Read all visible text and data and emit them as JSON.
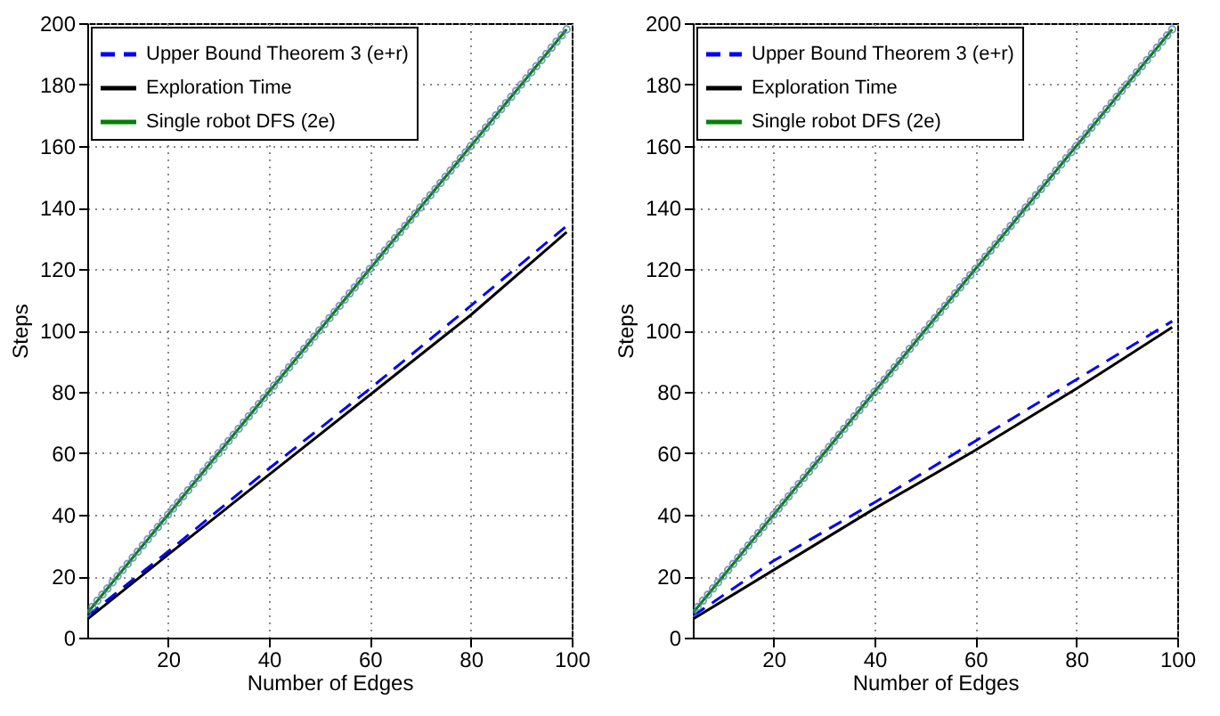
{
  "chart_data": [
    {
      "type": "line",
      "xlabel": "Number of Edges",
      "ylabel": "Steps",
      "xlim": [
        4,
        100
      ],
      "xticks": [
        20,
        40,
        60,
        80,
        100
      ],
      "ylim": [
        0,
        200
      ],
      "yticks": [
        0,
        20,
        40,
        60,
        80,
        100,
        120,
        140,
        160,
        180,
        200
      ],
      "grid": true,
      "legend": "top left",
      "series": [
        {
          "name": "Upper Bound Theorem 3 (e+r)",
          "color": "#0000ff",
          "line_style": "dashed",
          "marker": "none",
          "x": [
            4,
            20,
            40,
            60,
            80,
            99
          ],
          "values": [
            7,
            28,
            55,
            81,
            108,
            134
          ]
        },
        {
          "name": "Exploration Time",
          "color": "#000000",
          "line_style": "solid",
          "marker": "none",
          "x": [
            4,
            20,
            40,
            60,
            80,
            99
          ],
          "values": [
            6,
            27,
            53,
            79,
            105,
            132
          ]
        },
        {
          "name": "Single robot DFS (2e)",
          "color": "#008000",
          "line_style": "solid",
          "marker": "circle",
          "x": [
            4,
            5,
            6,
            7,
            8,
            9,
            10,
            11,
            12,
            13,
            14,
            15,
            16,
            17,
            18,
            19,
            20,
            21,
            22,
            23,
            24,
            25,
            26,
            27,
            28,
            29,
            30,
            31,
            32,
            33,
            34,
            35,
            36,
            37,
            38,
            39,
            40,
            41,
            42,
            43,
            44,
            45,
            46,
            47,
            48,
            49,
            50,
            51,
            52,
            53,
            54,
            55,
            56,
            57,
            58,
            59,
            60,
            61,
            62,
            63,
            64,
            65,
            66,
            67,
            68,
            69,
            70,
            71,
            72,
            73,
            74,
            75,
            76,
            77,
            78,
            79,
            80,
            81,
            82,
            83,
            84,
            85,
            86,
            87,
            88,
            89,
            90,
            91,
            92,
            93,
            94,
            95,
            96,
            97,
            98,
            99
          ],
          "values": [
            8,
            10,
            12,
            14,
            16,
            18,
            20,
            22,
            24,
            26,
            28,
            30,
            32,
            34,
            36,
            38,
            40,
            42,
            44,
            46,
            48,
            50,
            52,
            54,
            56,
            58,
            60,
            62,
            64,
            66,
            68,
            70,
            72,
            74,
            76,
            78,
            80,
            82,
            84,
            86,
            88,
            90,
            92,
            94,
            96,
            98,
            100,
            102,
            104,
            106,
            108,
            110,
            112,
            114,
            116,
            118,
            120,
            122,
            124,
            126,
            128,
            130,
            132,
            134,
            136,
            138,
            140,
            142,
            144,
            146,
            148,
            150,
            152,
            154,
            156,
            158,
            160,
            162,
            164,
            166,
            168,
            170,
            172,
            174,
            176,
            178,
            180,
            182,
            184,
            186,
            188,
            190,
            192,
            194,
            196,
            198
          ]
        }
      ]
    },
    {
      "type": "line",
      "xlabel": "Number of Edges",
      "ylabel": "Steps",
      "xlim": [
        4,
        100
      ],
      "xticks": [
        20,
        40,
        60,
        80,
        100
      ],
      "ylim": [
        0,
        200
      ],
      "yticks": [
        0,
        20,
        40,
        60,
        80,
        100,
        120,
        140,
        160,
        180,
        200
      ],
      "grid": true,
      "legend": "top left",
      "series": [
        {
          "name": "Upper Bound Theorem 3 (e+r)",
          "color": "#0000ff",
          "line_style": "dashed",
          "marker": "none",
          "x": [
            4,
            20,
            40,
            60,
            80,
            99
          ],
          "values": [
            7,
            25,
            44,
            64,
            84,
            103
          ]
        },
        {
          "name": "Exploration Time",
          "color": "#000000",
          "line_style": "solid",
          "marker": "none",
          "x": [
            4,
            20,
            40,
            60,
            80,
            99
          ],
          "values": [
            6,
            22,
            42,
            61,
            81,
            101
          ]
        },
        {
          "name": "Single robot DFS (2e)",
          "color": "#008000",
          "line_style": "solid",
          "marker": "circle",
          "x": [
            4,
            5,
            6,
            7,
            8,
            9,
            10,
            11,
            12,
            13,
            14,
            15,
            16,
            17,
            18,
            19,
            20,
            21,
            22,
            23,
            24,
            25,
            26,
            27,
            28,
            29,
            30,
            31,
            32,
            33,
            34,
            35,
            36,
            37,
            38,
            39,
            40,
            41,
            42,
            43,
            44,
            45,
            46,
            47,
            48,
            49,
            50,
            51,
            52,
            53,
            54,
            55,
            56,
            57,
            58,
            59,
            60,
            61,
            62,
            63,
            64,
            65,
            66,
            67,
            68,
            69,
            70,
            71,
            72,
            73,
            74,
            75,
            76,
            77,
            78,
            79,
            80,
            81,
            82,
            83,
            84,
            85,
            86,
            87,
            88,
            89,
            90,
            91,
            92,
            93,
            94,
            95,
            96,
            97,
            98,
            99
          ],
          "values": [
            8,
            10,
            12,
            14,
            16,
            18,
            20,
            22,
            24,
            26,
            28,
            30,
            32,
            34,
            36,
            38,
            40,
            42,
            44,
            46,
            48,
            50,
            52,
            54,
            56,
            58,
            60,
            62,
            64,
            66,
            68,
            70,
            72,
            74,
            76,
            78,
            80,
            82,
            84,
            86,
            88,
            90,
            92,
            94,
            96,
            98,
            100,
            102,
            104,
            106,
            108,
            110,
            112,
            114,
            116,
            118,
            120,
            122,
            124,
            126,
            128,
            130,
            132,
            134,
            136,
            138,
            140,
            142,
            144,
            146,
            148,
            150,
            152,
            154,
            156,
            158,
            160,
            162,
            164,
            166,
            168,
            170,
            172,
            174,
            176,
            178,
            180,
            182,
            184,
            186,
            188,
            190,
            192,
            194,
            196,
            198
          ]
        }
      ]
    }
  ]
}
